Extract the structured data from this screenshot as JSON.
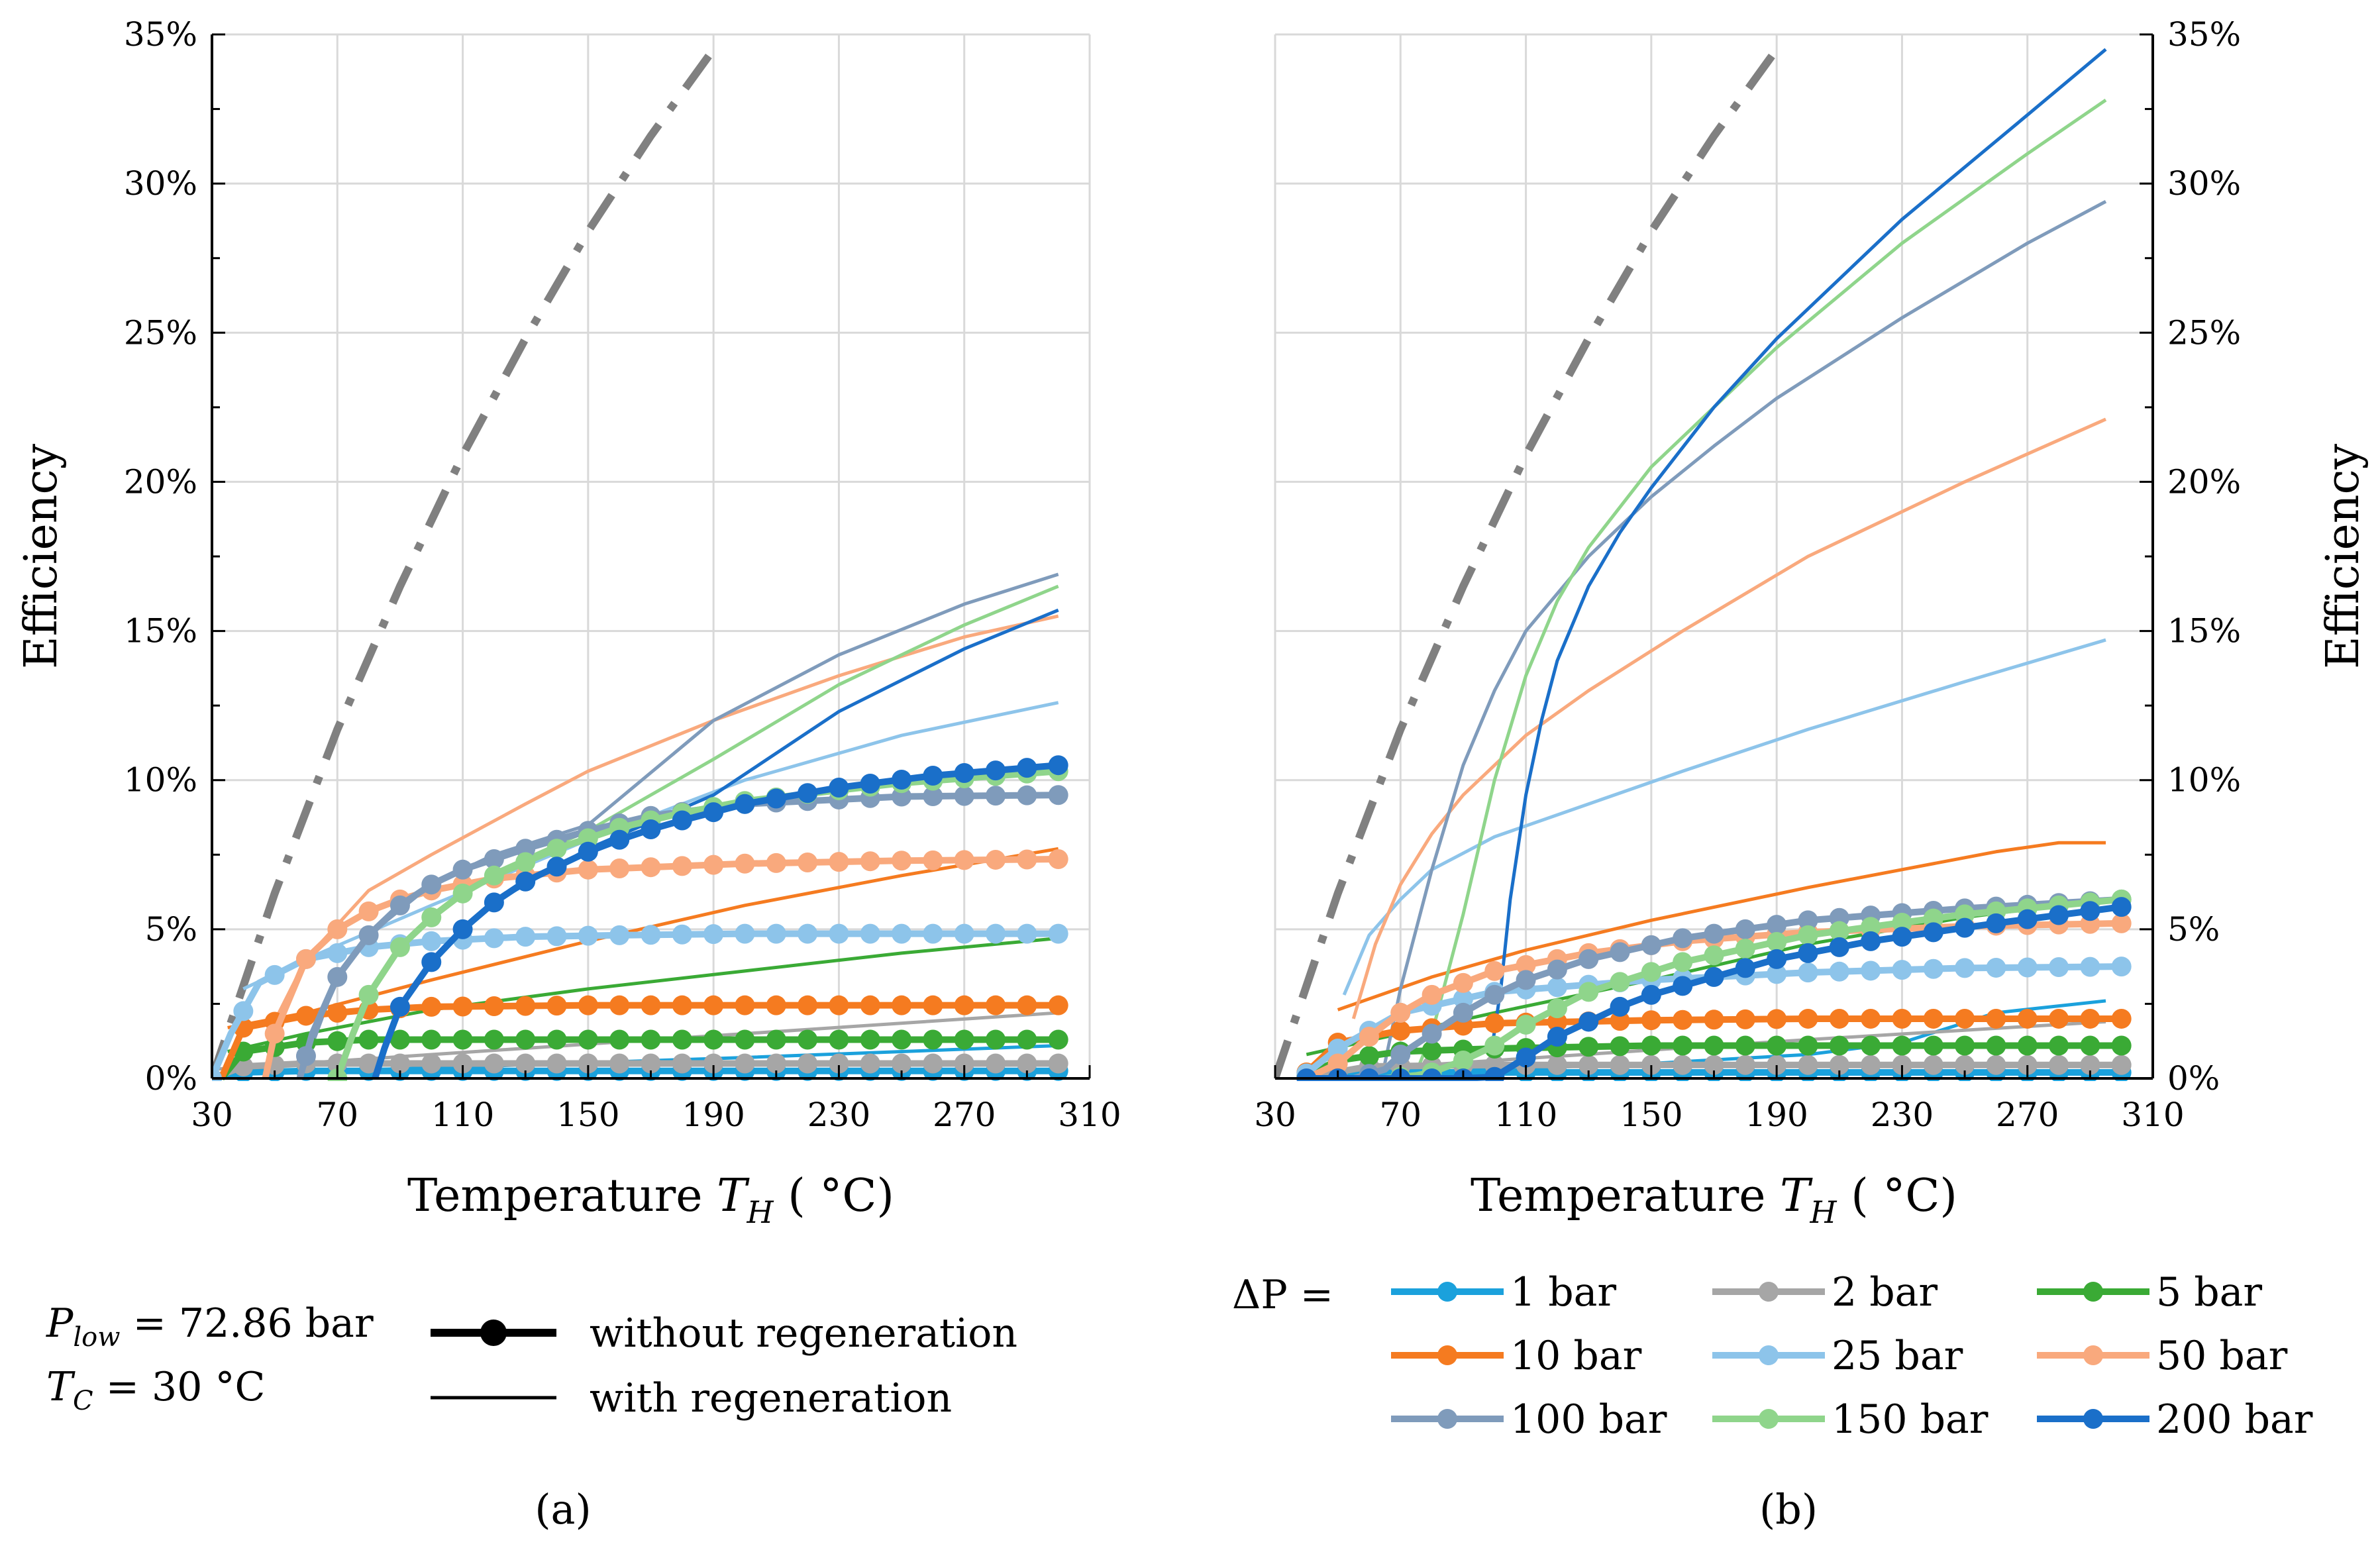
{
  "colors": {
    "carnot": "#808080",
    "bar1": "#1ba1dc",
    "bar2": "#a6a6a6",
    "bar5": "#3aaa35",
    "bar10": "#f57b20",
    "bar25": "#8dc4ea",
    "bar50": "#f9a97d",
    "bar100": "#7f9bbb",
    "bar150": "#8fd58b",
    "bar200": "#1a6fc9",
    "grid": "#d9d9d9",
    "axis": "#000000"
  },
  "chart_data": [
    {
      "type": "line",
      "panel": "a",
      "caption": "(a)",
      "xlabel": "Temperature T_H ( °C)",
      "xlabel_main": "Temperature ",
      "xlabel_var": "T",
      "xlabel_sub": "H",
      "xlabel_unit": " ( °C)",
      "ylabel": "Efficiency",
      "xlim": [
        30,
        310
      ],
      "ylim": [
        0,
        35
      ],
      "xticks": [
        "30",
        "70",
        "110",
        "150",
        "190",
        "230",
        "270",
        "310"
      ],
      "yticks": [
        "0%",
        "5%",
        "10%",
        "15%",
        "20%",
        "25%",
        "30%",
        "35%"
      ],
      "carnot": {
        "x": [
          30,
          50,
          70,
          90,
          110,
          130,
          150,
          170,
          190
        ],
        "y": [
          0,
          6.2,
          11.7,
          16.5,
          20.9,
          24.8,
          28.4,
          31.6,
          34.5
        ]
      },
      "without_regeneration": [
        {
          "name": "1 bar",
          "x": [
            30,
            40,
            60,
            100,
            150,
            200,
            250,
            300
          ],
          "y": [
            0,
            0.2,
            0.25,
            0.25,
            0.25,
            0.25,
            0.25,
            0.25
          ]
        },
        {
          "name": "2 bar",
          "x": [
            30,
            40,
            60,
            100,
            150,
            200,
            250,
            300
          ],
          "y": [
            0,
            0.4,
            0.5,
            0.5,
            0.5,
            0.5,
            0.5,
            0.5
          ]
        },
        {
          "name": "5 bar",
          "x": [
            33,
            40,
            60,
            80,
            100,
            150,
            200,
            250,
            300
          ],
          "y": [
            0,
            0.9,
            1.2,
            1.3,
            1.3,
            1.3,
            1.3,
            1.3,
            1.3
          ]
        },
        {
          "name": "10 bar",
          "x": [
            33,
            40,
            60,
            80,
            100,
            150,
            200,
            250,
            300
          ],
          "y": [
            0,
            1.7,
            2.1,
            2.3,
            2.4,
            2.45,
            2.45,
            2.45,
            2.45
          ]
        },
        {
          "name": "25 bar",
          "x": [
            30,
            36,
            45,
            60,
            80,
            100,
            130,
            160,
            200,
            250,
            300
          ],
          "y": [
            0,
            1.5,
            3.2,
            4.0,
            4.4,
            4.6,
            4.75,
            4.8,
            4.85,
            4.85,
            4.85
          ]
        },
        {
          "name": "50 bar",
          "x": [
            47,
            50,
            60,
            70,
            80,
            90,
            100,
            120,
            150,
            200,
            250,
            300
          ],
          "y": [
            0,
            1.5,
            4.0,
            5.0,
            5.6,
            6.0,
            6.3,
            6.7,
            7.0,
            7.2,
            7.3,
            7.35
          ]
        },
        {
          "name": "100 bar",
          "x": [
            58,
            62,
            70,
            80,
            90,
            100,
            110,
            130,
            150,
            170,
            200,
            250,
            300
          ],
          "y": [
            0,
            1.5,
            3.4,
            4.8,
            5.8,
            6.5,
            7.0,
            7.7,
            8.3,
            8.8,
            9.2,
            9.45,
            9.5
          ]
        },
        {
          "name": "150 bar",
          "x": [
            70,
            75,
            80,
            90,
            100,
            110,
            120,
            140,
            160,
            180,
            200,
            250,
            300
          ],
          "y": [
            0,
            1.5,
            2.8,
            4.4,
            5.4,
            6.2,
            6.8,
            7.7,
            8.4,
            8.9,
            9.3,
            9.9,
            10.3
          ]
        },
        {
          "name": "200 bar",
          "x": [
            82,
            85,
            90,
            100,
            110,
            120,
            130,
            140,
            150,
            160,
            170,
            180,
            200,
            230,
            260,
            300
          ],
          "y": [
            0,
            1.0,
            2.4,
            3.9,
            5.0,
            5.9,
            6.6,
            7.1,
            7.6,
            8.0,
            8.35,
            8.65,
            9.2,
            9.75,
            10.15,
            10.5
          ]
        }
      ],
      "with_regeneration": [
        {
          "name": "1 bar",
          "x": [
            30,
            100,
            200,
            300
          ],
          "y": [
            0.15,
            0.35,
            0.7,
            1.1
          ]
        },
        {
          "name": "2 bar",
          "x": [
            30,
            100,
            200,
            300
          ],
          "y": [
            0.3,
            0.8,
            1.5,
            2.2
          ]
        },
        {
          "name": "5 bar",
          "x": [
            35,
            60,
            100,
            150,
            200,
            250,
            300
          ],
          "y": [
            0.9,
            1.5,
            2.3,
            3.0,
            3.6,
            4.2,
            4.7
          ]
        },
        {
          "name": "10 bar",
          "x": [
            35,
            60,
            100,
            150,
            200,
            250,
            300
          ],
          "y": [
            1.7,
            2.2,
            3.3,
            4.6,
            5.8,
            6.8,
            7.7
          ]
        },
        {
          "name": "25 bar",
          "x": [
            40,
            60,
            100,
            150,
            200,
            250,
            300
          ],
          "y": [
            3.0,
            4.0,
            5.8,
            8.0,
            10.0,
            11.5,
            12.6
          ]
        },
        {
          "name": "50 bar",
          "x": [
            48,
            60,
            80,
            100,
            130,
            150,
            190,
            230,
            270,
            300
          ],
          "y": [
            1.5,
            4.0,
            6.3,
            7.5,
            9.2,
            10.3,
            12.0,
            13.5,
            14.8,
            15.5
          ]
        },
        {
          "name": "100 bar",
          "x": [
            58,
            70,
            80,
            100,
            120,
            150,
            190,
            230,
            270,
            300
          ],
          "y": [
            0,
            3.4,
            4.8,
            6.5,
            7.5,
            8.5,
            12.0,
            14.2,
            15.9,
            16.9
          ]
        },
        {
          "name": "150 bar",
          "x": [
            70,
            80,
            90,
            100,
            120,
            150,
            190,
            230,
            270,
            300
          ],
          "y": [
            0,
            2.8,
            4.4,
            5.4,
            6.9,
            8.3,
            10.7,
            13.2,
            15.2,
            16.5
          ]
        },
        {
          "name": "200 bar",
          "x": [
            82,
            90,
            100,
            120,
            150,
            190,
            230,
            270,
            300
          ],
          "y": [
            0,
            2.4,
            3.9,
            5.9,
            7.7,
            9.5,
            12.3,
            14.4,
            15.7
          ]
        }
      ],
      "legend": {
        "plow_var": "P",
        "plow_sub": "low",
        "plow_value": " = 72.86 bar",
        "tc_var": "T",
        "tc_sub": "C",
        "tc_value": " = 30 °C",
        "without_label": "without regeneration",
        "with_label": "with regeneration"
      }
    },
    {
      "type": "line",
      "panel": "b",
      "caption": "(b)",
      "xlabel": "Temperature T_H ( °C)",
      "xlabel_main": "Temperature ",
      "xlabel_var": "T",
      "xlabel_sub": "H",
      "xlabel_unit": " ( °C)",
      "ylabel": "Efficiency",
      "xlim": [
        30,
        310
      ],
      "ylim": [
        0,
        35
      ],
      "xticks": [
        "30",
        "70",
        "110",
        "150",
        "190",
        "230",
        "270",
        "310"
      ],
      "yticks": [
        "0%",
        "5%",
        "10%",
        "15%",
        "20%",
        "25%",
        "30%",
        "35%"
      ],
      "carnot": {
        "x": [
          30,
          50,
          70,
          90,
          110,
          130,
          150,
          170,
          190
        ],
        "y": [
          0,
          6.2,
          11.7,
          16.5,
          20.9,
          24.8,
          28.4,
          31.6,
          34.5
        ]
      },
      "without_regeneration": [
        {
          "name": "1 bar",
          "x": [
            38,
            60,
            100,
            150,
            200,
            250,
            300
          ],
          "y": [
            0,
            0.2,
            0.2,
            0.2,
            0.2,
            0.2,
            0.2
          ]
        },
        {
          "name": "2 bar",
          "x": [
            38,
            60,
            100,
            150,
            200,
            250,
            300
          ],
          "y": [
            0,
            0.4,
            0.45,
            0.45,
            0.45,
            0.45,
            0.45
          ]
        },
        {
          "name": "5 bar",
          "x": [
            38,
            50,
            70,
            100,
            150,
            200,
            250,
            300
          ],
          "y": [
            0,
            0.6,
            0.9,
            1.0,
            1.1,
            1.1,
            1.1,
            1.1
          ]
        },
        {
          "name": "10 bar",
          "x": [
            38,
            50,
            70,
            100,
            150,
            200,
            250,
            300
          ],
          "y": [
            0,
            1.2,
            1.6,
            1.85,
            1.95,
            2.0,
            2.0,
            2.0
          ]
        },
        {
          "name": "25 bar",
          "x": [
            38,
            50,
            70,
            100,
            150,
            200,
            250,
            300
          ],
          "y": [
            0,
            1.0,
            2.2,
            2.9,
            3.3,
            3.55,
            3.7,
            3.75
          ]
        },
        {
          "name": "50 bar",
          "x": [
            40,
            50,
            60,
            70,
            80,
            100,
            130,
            160,
            200,
            250,
            300
          ],
          "y": [
            0,
            0.5,
            1.4,
            2.2,
            2.8,
            3.6,
            4.2,
            4.6,
            4.9,
            5.1,
            5.2
          ]
        },
        {
          "name": "100 bar",
          "x": [
            55,
            65,
            70,
            80,
            90,
            100,
            110,
            130,
            160,
            200,
            250,
            300
          ],
          "y": [
            0,
            0.3,
            0.8,
            1.5,
            2.2,
            2.8,
            3.3,
            4.0,
            4.7,
            5.3,
            5.7,
            6.0
          ]
        },
        {
          "name": "150 bar",
          "x": [
            65,
            75,
            80,
            90,
            100,
            110,
            130,
            160,
            200,
            250,
            300
          ],
          "y": [
            0,
            0.1,
            0.2,
            0.6,
            1.1,
            1.8,
            2.9,
            3.9,
            4.8,
            5.5,
            6.0
          ]
        },
        {
          "name": "200 bar",
          "x": [
            38,
            50,
            60,
            70,
            80,
            90,
            100,
            110,
            120,
            130,
            140,
            150,
            170,
            190,
            220,
            260,
            300
          ],
          "y": [
            0,
            0,
            0,
            0,
            0,
            0,
            0.05,
            0.7,
            1.4,
            1.9,
            2.4,
            2.8,
            3.4,
            4.0,
            4.6,
            5.2,
            5.75
          ]
        }
      ],
      "with_regeneration": [
        {
          "name": "1 bar",
          "x": [
            40,
            100,
            150,
            200,
            230,
            260,
            295
          ],
          "y": [
            0.1,
            0.3,
            0.5,
            0.8,
            1.2,
            2.2,
            2.6
          ]
        },
        {
          "name": "2 bar",
          "x": [
            40,
            100,
            200,
            295
          ],
          "y": [
            0.2,
            0.6,
            1.3,
            1.9
          ]
        },
        {
          "name": "5 bar",
          "x": [
            40,
            100,
            150,
            200,
            250,
            295
          ],
          "y": [
            0.8,
            2.2,
            3.3,
            4.5,
            5.4,
            6.0
          ]
        },
        {
          "name": "10 bar",
          "x": [
            50,
            80,
            110,
            150,
            200,
            230,
            260,
            280,
            295
          ],
          "y": [
            2.3,
            3.4,
            4.3,
            5.3,
            6.4,
            7.0,
            7.6,
            7.9,
            7.9
          ]
        },
        {
          "name": "25 bar",
          "x": [
            52,
            60,
            70,
            80,
            100,
            130,
            160,
            200,
            250,
            295
          ],
          "y": [
            2.8,
            4.8,
            6.0,
            7.0,
            8.1,
            9.2,
            10.3,
            11.7,
            13.3,
            14.7
          ]
        },
        {
          "name": "50 bar",
          "x": [
            55,
            62,
            70,
            80,
            90,
            100,
            110,
            130,
            160,
            200,
            250,
            295
          ],
          "y": [
            2.0,
            4.5,
            6.5,
            8.2,
            9.5,
            10.5,
            11.5,
            13.0,
            15.0,
            17.5,
            20.0,
            22.1
          ]
        },
        {
          "name": "100 bar",
          "x": [
            65,
            70,
            80,
            90,
            100,
            110,
            130,
            150,
            170,
            190,
            230,
            270,
            295
          ],
          "y": [
            0.5,
            3.0,
            7.0,
            10.5,
            13.0,
            15.0,
            17.5,
            19.5,
            21.2,
            22.8,
            25.5,
            28.0,
            29.4
          ]
        },
        {
          "name": "150 bar",
          "x": [
            75,
            80,
            90,
            100,
            110,
            120,
            130,
            150,
            170,
            190,
            230,
            270,
            295
          ],
          "y": [
            0.2,
            1.5,
            5.5,
            10.0,
            13.5,
            16.0,
            17.8,
            20.5,
            22.5,
            24.5,
            28.0,
            31.0,
            32.8
          ]
        },
        {
          "name": "200 bar",
          "x": [
            98,
            102,
            105,
            110,
            115,
            120,
            130,
            140,
            150,
            170,
            190,
            230,
            270,
            295
          ],
          "y": [
            0.2,
            3.0,
            6.0,
            9.5,
            12.0,
            14.0,
            16.5,
            18.3,
            19.8,
            22.5,
            24.8,
            28.8,
            32.3,
            34.5
          ]
        }
      ],
      "legend": {
        "deltap_label": "ΔP =",
        "entries": [
          {
            "name": "1 bar",
            "key": "bar1"
          },
          {
            "name": "2 bar",
            "key": "bar2"
          },
          {
            "name": "5 bar",
            "key": "bar5"
          },
          {
            "name": "10 bar",
            "key": "bar10"
          },
          {
            "name": "25 bar",
            "key": "bar25"
          },
          {
            "name": "50 bar",
            "key": "bar50"
          },
          {
            "name": "100 bar",
            "key": "bar100"
          },
          {
            "name": "150 bar",
            "key": "bar150"
          },
          {
            "name": "200 bar",
            "key": "bar200"
          }
        ]
      }
    }
  ]
}
